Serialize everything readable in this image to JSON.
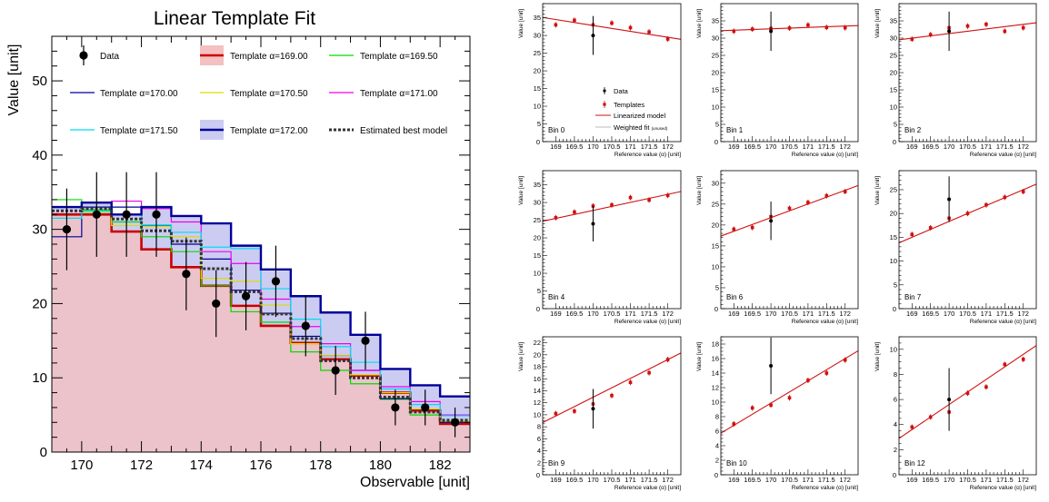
{
  "main_chart": {
    "title": "Linear Template Fit",
    "xlabel": "Observable [unit]",
    "ylabel": "Value [unit]",
    "x_ticks": [
      "170",
      "172",
      "174",
      "176",
      "178",
      "180",
      "182"
    ],
    "y_ticks": [
      "0",
      "10",
      "20",
      "30",
      "40",
      "50"
    ],
    "legend": {
      "data": "Data",
      "t169": "Template α=169.00",
      "t1695": "Template α=169.50",
      "t170": "Template α=170.00",
      "t1705": "Template α=170.50",
      "t171": "Template α=171.00",
      "t1715": "Template α=171.50",
      "t172": "Template α=172.00",
      "best": "Estimated best model"
    }
  },
  "small_panels": {
    "xlabel": "Reference value (α) [unit]",
    "ylabel": "Value [unit]",
    "x_ticks": [
      "169",
      "169.5",
      "170",
      "170.5",
      "171",
      "171.5",
      "172"
    ],
    "legend": {
      "data": "Data",
      "templates": "Templates",
      "linearized": "Linearized model",
      "weighted": "Weighted fit",
      "unused": "(unused)"
    }
  },
  "chart_data": [
    {
      "type": "histogram",
      "title": "Linear Template Fit",
      "xlabel": "Observable [unit]",
      "ylabel": "Value [unit]",
      "xlim": [
        169,
        183
      ],
      "ylim": [
        0,
        56
      ],
      "bin_edges": [
        169,
        170,
        171,
        172,
        173,
        174,
        175,
        176,
        177,
        178,
        179,
        180,
        181,
        182,
        183
      ],
      "colors": {
        "data": "#000000",
        "t169": "#cc0000",
        "t1695": "#00dd00",
        "t170": "#000099",
        "t1705": "#dddd00",
        "t171": "#ee00ee",
        "t1715": "#00ddee",
        "t172": "#000099",
        "fill169": "#f4c0c0",
        "fill172": "#ccccf2",
        "best": "#333333"
      },
      "series": [
        {
          "name": "Template α=169.00",
          "values": [
            32.0,
            32.0,
            29.7,
            27.3,
            24.9,
            22.4,
            19.7,
            17.0,
            14.7,
            12.5,
            10.3,
            8.0,
            5.6,
            3.8,
            2.8
          ]
        },
        {
          "name": "Template α=169.50",
          "values": [
            34.0,
            32.6,
            31.0,
            29.0,
            27.0,
            22.4,
            18.9,
            17.5,
            13.5,
            11.0,
            9.2,
            7.1,
            5.0,
            4.0,
            4.0
          ]
        },
        {
          "name": "Template α=170.00",
          "values": [
            29.0,
            33.0,
            33.0,
            30.5,
            28.0,
            26.0,
            21.8,
            18.7,
            15.6,
            13.0,
            11.0,
            7.2,
            5.8,
            4.0,
            4.0
          ]
        },
        {
          "name": "Template α=170.50",
          "values": [
            33.0,
            32.3,
            30.5,
            30.4,
            29.0,
            23.4,
            23.0,
            19.8,
            14.6,
            13.0,
            10.4,
            8.0,
            5.8,
            4.2,
            4.2
          ]
        },
        {
          "name": "Template α=171.00",
          "values": [
            33.0,
            33.6,
            33.8,
            32.8,
            31.0,
            27.0,
            25.4,
            20.6,
            16.9,
            14.6,
            11.0,
            8.8,
            6.8,
            5.0,
            5.0
          ]
        },
        {
          "name": "Template α=171.50",
          "values": [
            31.5,
            32.4,
            32.0,
            30.6,
            29.6,
            27.6,
            27.4,
            22.0,
            17.9,
            14.2,
            12.1,
            8.5,
            6.4,
            4.9,
            4.9
          ]
        },
        {
          "name": "Template α=172.00",
          "values": [
            33.0,
            33.6,
            32.0,
            33.0,
            31.8,
            30.8,
            27.8,
            24.6,
            21.0,
            18.8,
            15.8,
            11.2,
            9.0,
            7.5,
            7.5
          ]
        },
        {
          "name": "Estimated best model",
          "values": [
            32.5,
            32.8,
            31.4,
            29.8,
            28.4,
            24.7,
            21.6,
            18.6,
            15.3,
            12.3,
            10.0,
            7.4,
            5.4,
            4.3,
            4.3
          ]
        }
      ],
      "data_points": {
        "name": "Data",
        "x": [
          169.5,
          170.5,
          171.5,
          172.5,
          173.5,
          174.5,
          175.5,
          176.5,
          177.5,
          178.5,
          179.5,
          180.5,
          181.5,
          182.5
        ],
        "y": [
          30,
          32,
          32,
          32,
          24,
          20,
          21,
          23,
          17,
          11,
          15,
          6,
          6,
          4
        ],
        "err": [
          5.5,
          5.7,
          5.7,
          5.7,
          4.9,
          4.5,
          4.6,
          4.8,
          4.1,
          3.3,
          3.9,
          2.4,
          2.4,
          2.0
        ]
      }
    },
    {
      "type": "scatter",
      "bin": "Bin 0",
      "x": [
        169,
        169.5,
        170,
        170.5,
        171,
        171.5,
        172
      ],
      "templates": [
        33.0,
        34.3,
        33.0,
        33.5,
        32.2,
        31.0,
        29.0
      ],
      "data_y": 30.0,
      "data_err": 5.5,
      "data_x": 170.0,
      "fit_line": [
        34.5,
        29.5
      ],
      "ylim": [
        0,
        39
      ],
      "yticks": [
        5,
        10,
        15,
        20,
        25,
        30,
        35
      ]
    },
    {
      "type": "scatter",
      "bin": "Bin 1",
      "x": [
        169,
        169.5,
        170,
        170.5,
        171,
        171.5,
        172
      ],
      "templates": [
        32.0,
        32.6,
        32.8,
        32.9,
        33.8,
        33.1,
        33.0
      ],
      "data_y": 32.0,
      "data_err": 5.7,
      "data_x": 170.0,
      "fit_line": [
        32.3,
        33.5
      ],
      "ylim": [
        0,
        40
      ],
      "yticks": [
        5,
        10,
        15,
        20,
        25,
        30,
        35
      ]
    },
    {
      "type": "scatter",
      "bin": "Bin 2",
      "x": [
        169,
        169.5,
        170,
        170.5,
        171,
        171.5,
        172
      ],
      "templates": [
        29.7,
        31.0,
        33.0,
        33.5,
        34.0,
        32.0,
        33.0
      ],
      "data_y": 32.0,
      "data_err": 5.7,
      "data_x": 170.0,
      "fit_line": [
        30.0,
        34.0
      ],
      "ylim": [
        0,
        40
      ],
      "yticks": [
        5,
        10,
        15,
        20,
        25,
        30,
        35
      ]
    },
    {
      "type": "scatter",
      "bin": "Bin 4",
      "x": [
        169,
        169.5,
        170,
        170.5,
        171,
        171.5,
        172
      ],
      "templates": [
        25.7,
        27.3,
        29.0,
        29.3,
        31.4,
        30.7,
        32.0
      ],
      "data_y": 24.0,
      "data_err": 5.0,
      "data_x": 170.0,
      "fit_line": [
        25.5,
        32.3
      ],
      "ylim": [
        0,
        39
      ],
      "yticks": [
        5,
        10,
        15,
        20,
        25,
        30,
        35
      ]
    },
    {
      "type": "scatter",
      "bin": "Bin 6",
      "x": [
        169,
        169.5,
        170,
        170.5,
        171,
        171.5,
        172
      ],
      "templates": [
        19.0,
        19.4,
        22.0,
        24.0,
        25.4,
        27.0,
        28.0
      ],
      "data_y": 21.0,
      "data_err": 4.6,
      "data_x": 170.0,
      "fit_line": [
        18.5,
        28.3
      ],
      "ylim": [
        0,
        33
      ],
      "yticks": [
        5,
        10,
        15,
        20,
        25,
        30
      ]
    },
    {
      "type": "scatter",
      "bin": "Bin 7",
      "x": [
        169,
        169.5,
        170,
        170.5,
        171,
        171.5,
        172
      ],
      "templates": [
        15.6,
        17.0,
        19.0,
        20.0,
        21.8,
        23.4,
        24.6
      ],
      "data_y": 23.0,
      "data_err": 4.8,
      "data_x": 170.0,
      "fit_line": [
        15.0,
        25.0
      ],
      "ylim": [
        0,
        29
      ],
      "yticks": [
        5,
        10,
        15,
        20,
        25
      ]
    },
    {
      "type": "scatter",
      "bin": "Bin 9",
      "x": [
        169,
        169.5,
        170,
        170.5,
        171,
        171.5,
        172
      ],
      "templates": [
        10.2,
        10.6,
        11.8,
        13.2,
        15.4,
        17.0,
        19.2
      ],
      "data_y": 11.0,
      "data_err": 3.3,
      "data_x": 170.0,
      "fit_line": [
        9.8,
        19.2
      ],
      "ylim": [
        0,
        23
      ],
      "yticks": [
        2,
        4,
        6,
        8,
        10,
        12,
        14,
        16,
        18,
        20,
        22
      ]
    },
    {
      "type": "scatter",
      "bin": "Bin 10",
      "x": [
        169,
        169.5,
        170,
        170.5,
        171,
        171.5,
        172
      ],
      "templates": [
        7.0,
        9.2,
        9.6,
        10.6,
        13.0,
        14.0,
        15.8
      ],
      "data_y": 15.0,
      "data_err": 3.9,
      "data_x": 170.0,
      "fit_line": [
        6.8,
        16.0
      ],
      "ylim": [
        0,
        19
      ],
      "yticks": [
        2,
        4,
        6,
        8,
        10,
        12,
        14,
        16,
        18
      ]
    },
    {
      "type": "scatter",
      "bin": "Bin 12",
      "x": [
        169,
        169.5,
        170,
        170.5,
        171,
        171.5,
        172
      ],
      "templates": [
        3.8,
        4.6,
        5.0,
        6.5,
        7.0,
        8.8,
        9.2
      ],
      "data_y": 6.0,
      "data_err": 2.5,
      "data_x": 170.0,
      "fit_line": [
        3.6,
        9.6
      ],
      "ylim": [
        0,
        11
      ],
      "yticks": [
        2,
        4,
        6,
        8,
        10
      ]
    }
  ]
}
